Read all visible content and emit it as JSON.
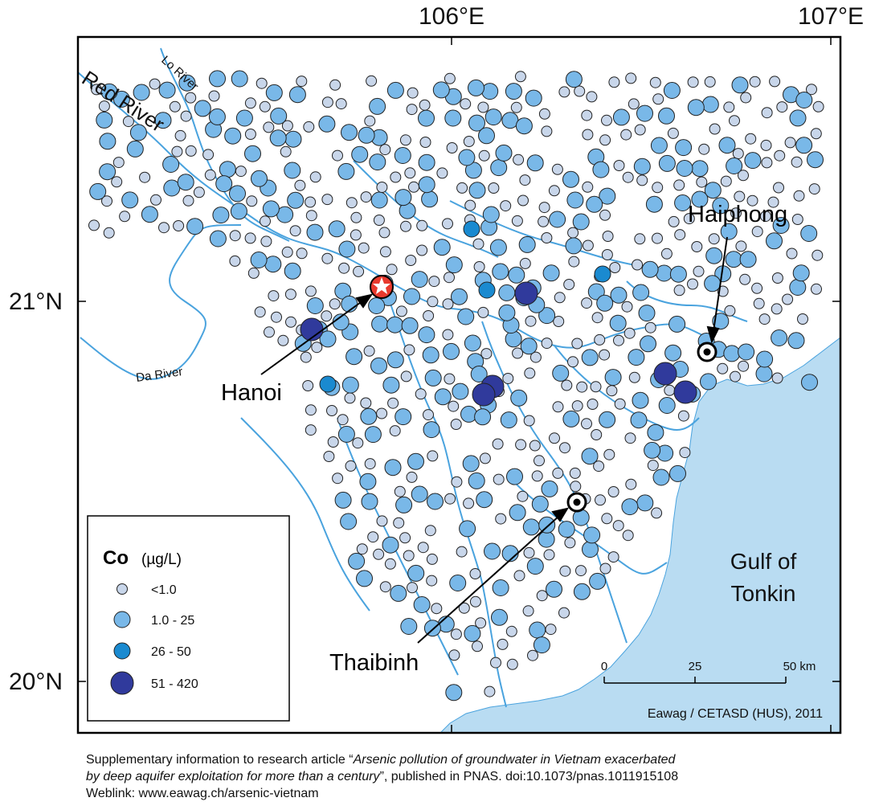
{
  "lon_labels": [
    "106°E",
    "107°E"
  ],
  "lat_labels": [
    "21°N",
    "20°N"
  ],
  "rivers": [
    "Red River",
    "Lo River",
    "Da River"
  ],
  "places": {
    "hanoi": "Hanoi",
    "haiphong": "Haiphong",
    "thaibinh": "Thaibinh"
  },
  "gulf": [
    "Gulf of",
    "Tonkin"
  ],
  "legend": {
    "title_bold": "Co",
    "title_unit": "(µg/L)",
    "classes": [
      {
        "label": "<1.0",
        "color": "#c8d6ea"
      },
      {
        "label": "1.0 - 25",
        "color": "#79b8e8"
      },
      {
        "label": "26 - 50",
        "color": "#1a8ad0"
      },
      {
        "label": "51 - 420",
        "color": "#303a9c"
      }
    ]
  },
  "scale": {
    "ticks": [
      "0",
      "25",
      "50 km"
    ]
  },
  "credit": "Eawag / CETASD (HUS), 2011",
  "colors": {
    "sea": "#b9dcf2",
    "river": "#4aa3de",
    "frame": "#000000"
  },
  "caption": {
    "line1_prefix": "Supplementary information to research article “",
    "line1_italic": "Arsenic pollution of groundwater in Vietnam exacerbated",
    "line2_italic": "by deep aquifer exploitation for more than a century",
    "line2_suffix": "”, published in PNAS. doi:10.1073/pnas.1011915108",
    "line3": "Weblink: www.eawag.ch/arsenic-vietnam"
  }
}
